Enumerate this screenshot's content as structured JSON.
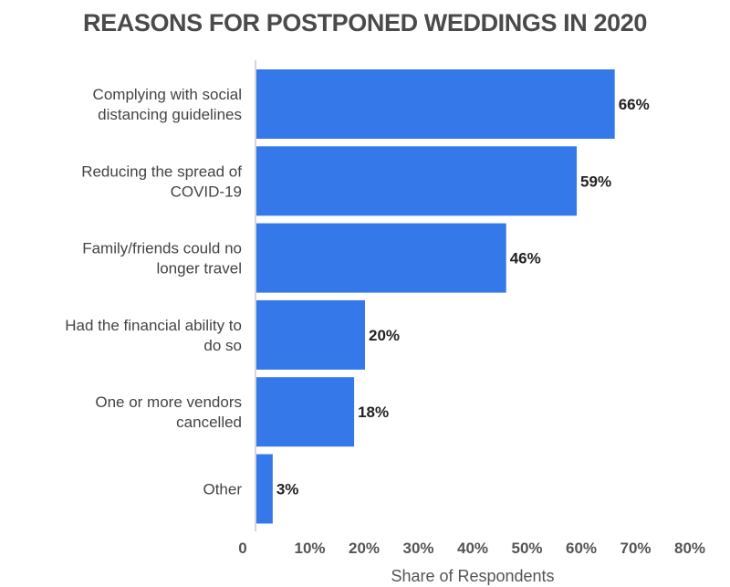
{
  "chart_data": {
    "type": "bar",
    "orientation": "horizontal",
    "title": "REASONS FOR POSTPONED WEDDINGS IN 2020",
    "xlabel": "Share of Respondents",
    "ylabel": "",
    "categories": [
      [
        "Complying with social",
        "distancing guidelines"
      ],
      [
        "Reducing the spread of",
        "COVID-19"
      ],
      [
        "Family/friends could no",
        "longer travel"
      ],
      [
        "Had the financial ability to",
        "do so"
      ],
      [
        "One or more vendors",
        "cancelled"
      ],
      [
        "Other"
      ]
    ],
    "values": [
      66,
      59,
      46,
      20,
      18,
      3
    ],
    "value_labels": [
      "66%",
      "59%",
      "46%",
      "20%",
      "18%",
      "3%"
    ],
    "x_ticks": [
      0,
      10,
      20,
      30,
      40,
      50,
      60,
      70,
      80
    ],
    "x_tick_labels": [
      "0",
      "10%",
      "20%",
      "30%",
      "40%",
      "50%",
      "60%",
      "70%",
      "80%"
    ],
    "xlim": [
      0,
      80
    ],
    "grid": false,
    "legend": "none",
    "bar_color": "#3478ea",
    "axis_color": "#d6d6d6"
  }
}
